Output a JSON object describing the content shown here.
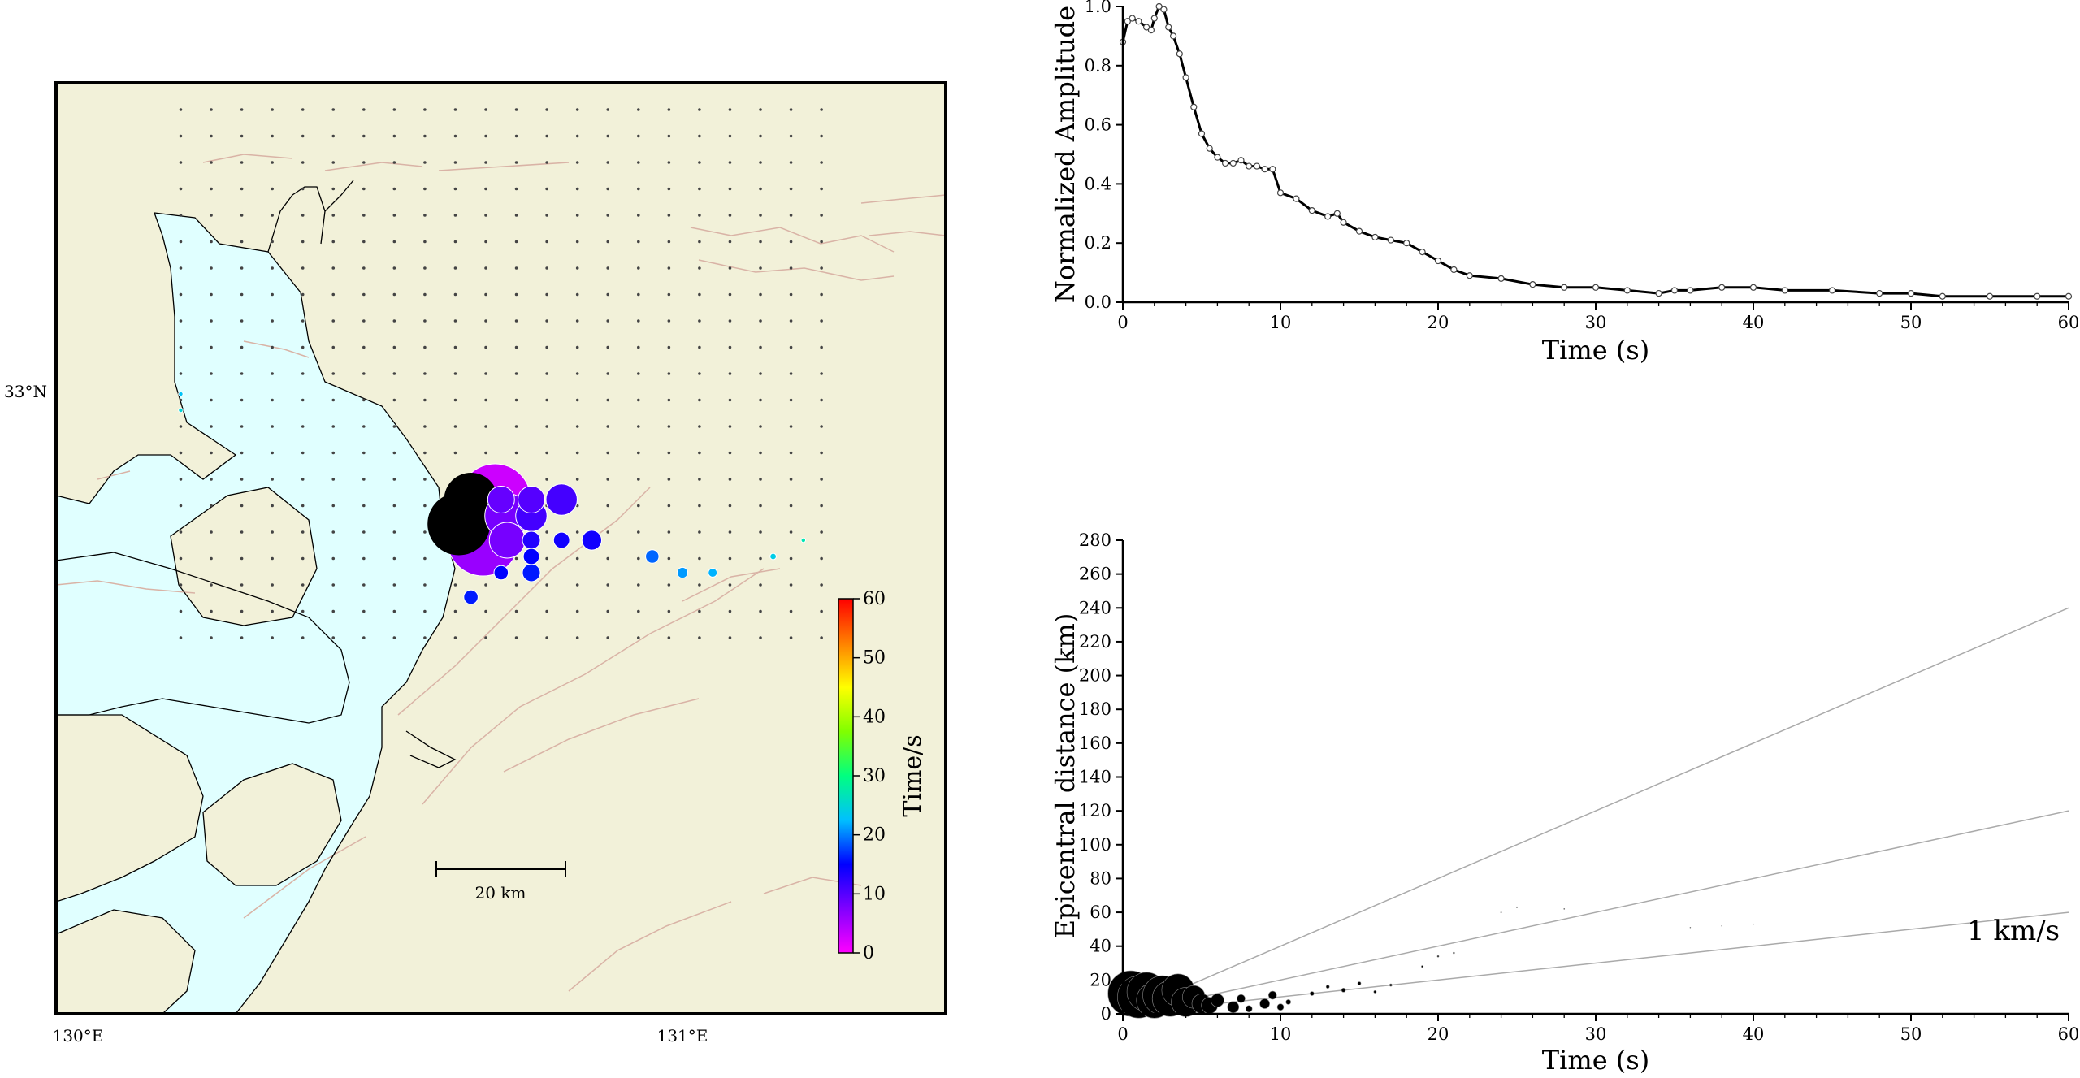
{
  "map": {
    "lon_ticks": [
      "130°E",
      "131°E"
    ],
    "lat_ticks": [
      "33°N"
    ],
    "scale_bar_label": "20 km",
    "colors": {
      "land": "#f2f1d9",
      "sea": "#e0ffff",
      "fault": "#d9b3a6",
      "coast": "#000000",
      "grid_dot": "#444444"
    },
    "colorbar": {
      "label": "Time/s",
      "ticks": [
        "0",
        "10",
        "20",
        "30",
        "40",
        "50",
        "60"
      ],
      "range": [
        0,
        60
      ],
      "stops": [
        "#ff00ff",
        "#8000ff",
        "#0000ff",
        "#00c0ff",
        "#00ff80",
        "#80ff00",
        "#ffff00",
        "#ff8000",
        "#ff0000"
      ]
    },
    "station_grid": {
      "lon_range": [
        130.17,
        131.23
      ],
      "lat_range": [
        32.7,
        33.35
      ],
      "cols": 22,
      "rows": 21
    },
    "events": [
      {
        "lon": 130.63,
        "lat": 32.84,
        "size": 7,
        "time": null
      },
      {
        "lon": 130.65,
        "lat": 32.87,
        "size": 6,
        "time": null
      },
      {
        "lon": 130.69,
        "lat": 32.87,
        "size": 8,
        "time": 3
      },
      {
        "lon": 130.67,
        "lat": 32.85,
        "size": 9,
        "time": 5
      },
      {
        "lon": 130.67,
        "lat": 32.82,
        "size": 8,
        "time": 6
      },
      {
        "lon": 130.71,
        "lat": 32.85,
        "size": 5,
        "time": 8
      },
      {
        "lon": 130.71,
        "lat": 32.82,
        "size": 4,
        "time": 8
      },
      {
        "lon": 130.7,
        "lat": 32.87,
        "size": 3,
        "time": 9
      },
      {
        "lon": 130.75,
        "lat": 32.87,
        "size": 3,
        "time": 10
      },
      {
        "lon": 130.8,
        "lat": 32.87,
        "size": 3.5,
        "time": 11
      },
      {
        "lon": 130.75,
        "lat": 32.85,
        "size": 3.5,
        "time": 11
      },
      {
        "lon": 130.75,
        "lat": 32.82,
        "size": 2,
        "time": 13
      },
      {
        "lon": 130.8,
        "lat": 32.82,
        "size": 1.8,
        "time": 14
      },
      {
        "lon": 130.85,
        "lat": 32.82,
        "size": 2.2,
        "time": 14
      },
      {
        "lon": 130.75,
        "lat": 32.8,
        "size": 1.8,
        "time": 15
      },
      {
        "lon": 130.7,
        "lat": 32.78,
        "size": 1.6,
        "time": 15
      },
      {
        "lon": 130.75,
        "lat": 32.78,
        "size": 2,
        "time": 16
      },
      {
        "lon": 130.65,
        "lat": 32.75,
        "size": 1.6,
        "time": 16
      },
      {
        "lon": 130.95,
        "lat": 32.8,
        "size": 1.5,
        "time": 19
      },
      {
        "lon": 131.0,
        "lat": 32.78,
        "size": 1.2,
        "time": 21
      },
      {
        "lon": 131.05,
        "lat": 32.78,
        "size": 1.0,
        "time": 22
      },
      {
        "lon": 131.15,
        "lat": 32.8,
        "size": 0.7,
        "time": 24
      },
      {
        "lon": 131.2,
        "lat": 32.82,
        "size": 0.5,
        "time": 27
      },
      {
        "lon": 130.17,
        "lat": 33.0,
        "size": 0.5,
        "time": 23
      },
      {
        "lon": 130.17,
        "lat": 32.98,
        "size": 0.5,
        "time": 25
      }
    ]
  },
  "chart_data": [
    {
      "type": "line",
      "xlabel": "Time (s)",
      "ylabel": "Normalized Amplitude",
      "xlim": [
        0,
        60
      ],
      "ylim": [
        0,
        1.0
      ],
      "xticks": [
        "0",
        "10",
        "20",
        "30",
        "40",
        "50",
        "60"
      ],
      "yticks": [
        "0.0",
        "0.2",
        "0.4",
        "0.6",
        "0.8",
        "1.0"
      ],
      "x": [
        0,
        0.3,
        0.6,
        1.0,
        1.5,
        1.8,
        2.0,
        2.3,
        2.6,
        2.9,
        3.2,
        3.6,
        4.0,
        4.5,
        5.0,
        5.5,
        6.0,
        6.5,
        7.0,
        7.5,
        8.0,
        8.5,
        9.0,
        9.5,
        10.0,
        11.0,
        12.0,
        13.0,
        13.6,
        14.0,
        15.0,
        16.0,
        17.0,
        18.0,
        19.0,
        20.0,
        21.0,
        22.0,
        24.0,
        26.0,
        28.0,
        30.0,
        32.0,
        34.0,
        35.0,
        36.0,
        38.0,
        40.0,
        42.0,
        45.0,
        48.0,
        50.0,
        52.0,
        55.0,
        58.0,
        60.0
      ],
      "y": [
        0.88,
        0.95,
        0.96,
        0.95,
        0.93,
        0.92,
        0.96,
        1.0,
        0.99,
        0.93,
        0.9,
        0.84,
        0.76,
        0.66,
        0.57,
        0.52,
        0.49,
        0.47,
        0.47,
        0.48,
        0.46,
        0.46,
        0.45,
        0.45,
        0.37,
        0.35,
        0.31,
        0.29,
        0.3,
        0.27,
        0.24,
        0.22,
        0.21,
        0.2,
        0.17,
        0.14,
        0.11,
        0.09,
        0.08,
        0.06,
        0.05,
        0.05,
        0.04,
        0.03,
        0.04,
        0.04,
        0.05,
        0.05,
        0.04,
        0.04,
        0.03,
        0.03,
        0.02,
        0.02,
        0.02,
        0.02
      ]
    },
    {
      "type": "scatter",
      "xlabel": "Time (s)",
      "ylabel": "Epicentral distance (km)",
      "xlim": [
        0,
        60
      ],
      "ylim": [
        0,
        280
      ],
      "xticks": [
        "0",
        "10",
        "20",
        "30",
        "40",
        "50",
        "60"
      ],
      "yticks": [
        "0",
        "20",
        "40",
        "60",
        "80",
        "100",
        "120",
        "140",
        "160",
        "180",
        "200",
        "220",
        "240",
        "260",
        "280"
      ],
      "annotation": "1 km/s",
      "reference_lines": [
        {
          "x": [
            0,
            60
          ],
          "y": [
            0,
            240
          ]
        },
        {
          "x": [
            0,
            60
          ],
          "y": [
            0,
            120
          ]
        },
        {
          "x": [
            0,
            60
          ],
          "y": [
            0,
            60
          ]
        }
      ],
      "x": [
        0.5,
        1.0,
        1.5,
        2.0,
        2.5,
        3.0,
        3.5,
        4.0,
        4.5,
        5.0,
        5.5,
        6.0,
        7.0,
        7.5,
        8.0,
        9.0,
        9.5,
        10.0,
        10.5,
        12.0,
        13.0,
        14.0,
        15.0,
        16.0,
        17.0,
        19.0,
        20.0,
        21.0,
        24.0,
        25.0,
        28.0,
        36.0,
        38.0,
        40.0
      ],
      "y": [
        12,
        10,
        13,
        8,
        11,
        9,
        14,
        7,
        10,
        6,
        5,
        8,
        4,
        9,
        3,
        6,
        11,
        4,
        7,
        12,
        16,
        14,
        18,
        13,
        17,
        28,
        34,
        36,
        60,
        63,
        62,
        51,
        52,
        53
      ],
      "sizes": [
        28,
        26,
        24,
        22,
        24,
        22,
        20,
        18,
        14,
        12,
        10,
        8,
        7,
        5,
        4,
        6,
        5,
        4,
        3,
        2.5,
        2,
        2.5,
        2,
        1.6,
        1.5,
        1.2,
        1,
        1,
        0.7,
        0.7,
        0.6,
        0.5,
        0.5,
        0.5
      ]
    }
  ]
}
